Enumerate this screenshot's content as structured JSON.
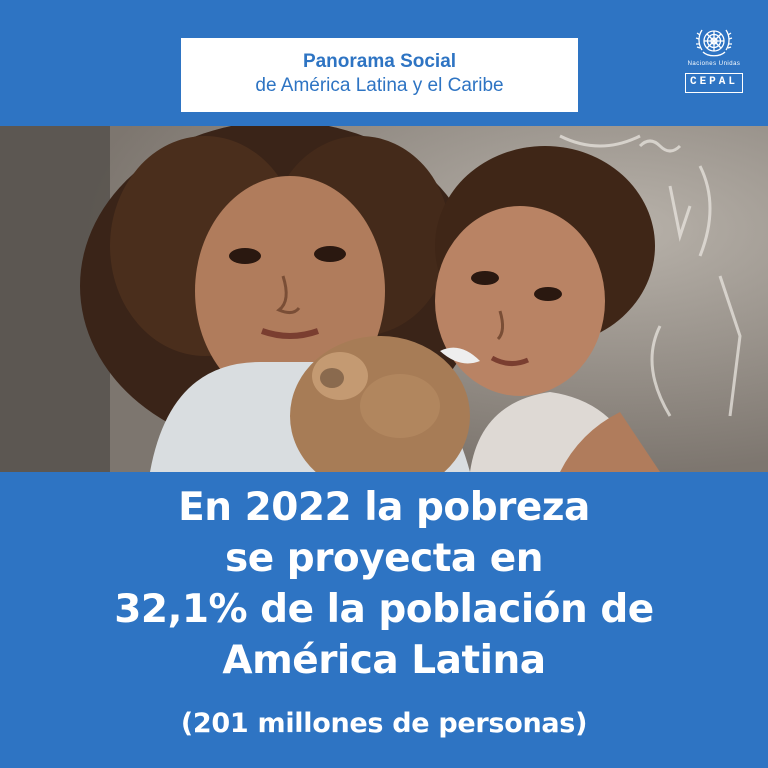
{
  "header": {
    "title_line1": "Panorama Social",
    "title_line2": "de América Latina y el Caribe"
  },
  "logos": {
    "un_label": "Naciones Unidas",
    "cepal_label": "CEPAL",
    "icon": "un-emblem-icon"
  },
  "photo": {
    "icon": "children-with-teddy-bear-photo"
  },
  "headline": {
    "line1": "En 2022 la pobreza",
    "line2": "se proyecta en",
    "line3": "32,1% de la población de",
    "line4": "América Latina"
  },
  "subline": "(201 millones de personas)",
  "colors": {
    "brand_blue": "#2e74c3",
    "white": "#ffffff"
  }
}
